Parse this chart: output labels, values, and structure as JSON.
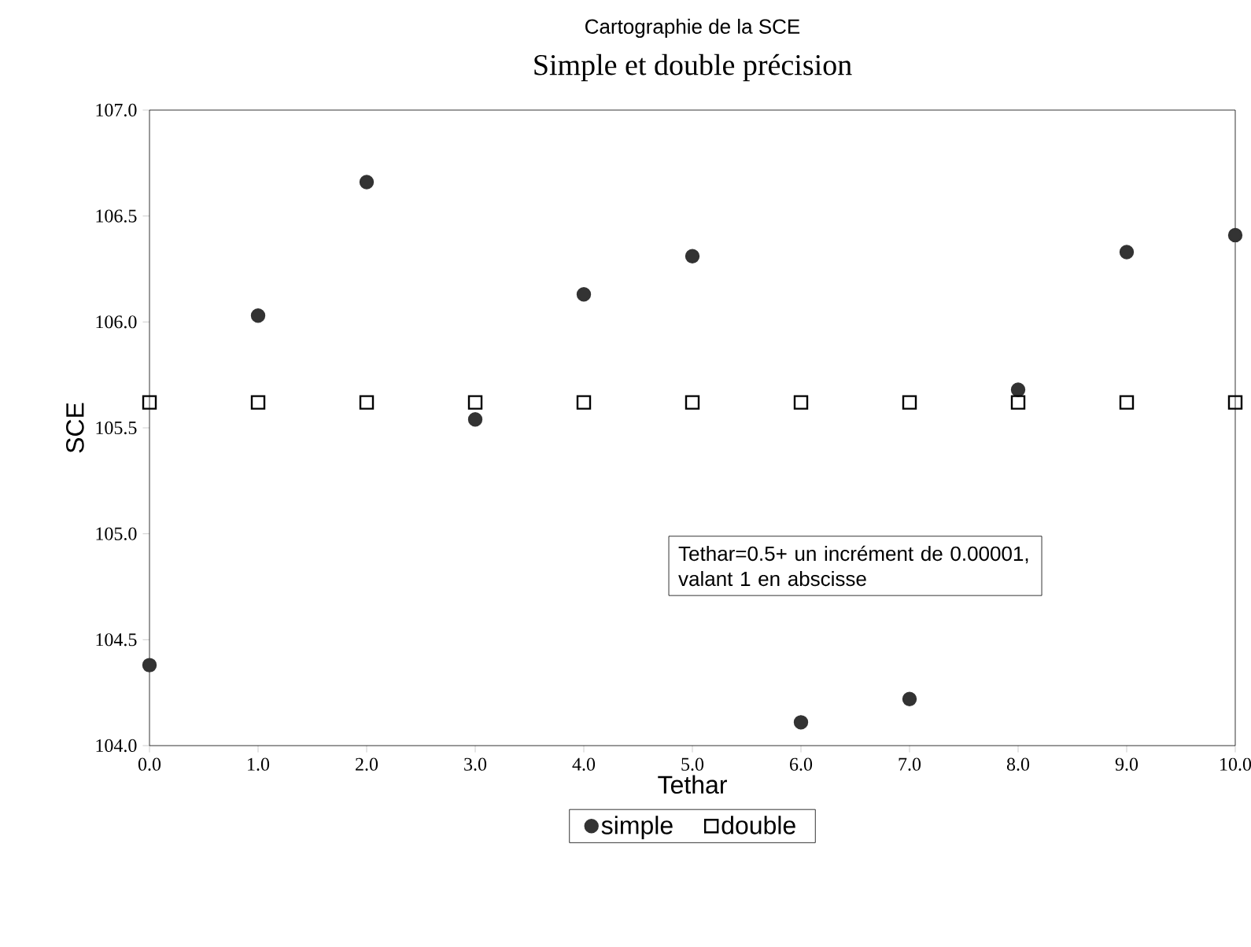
{
  "chart_data": {
    "type": "scatter",
    "title": "Cartographie de la SCE",
    "subtitle": "Simple et double précision",
    "xlabel": "Tethar",
    "ylabel": "SCE",
    "x": [
      0,
      1,
      2,
      3,
      4,
      5,
      6,
      7,
      8,
      9,
      10
    ],
    "series": [
      {
        "name": "simple",
        "color": "#333333",
        "marker": "circle",
        "values": [
          104.38,
          106.03,
          106.66,
          105.54,
          106.13,
          106.31,
          104.11,
          104.22,
          105.68,
          106.33,
          106.41
        ]
      },
      {
        "name": "double",
        "color": "#000000",
        "marker": "square",
        "values": [
          105.62,
          105.62,
          105.62,
          105.62,
          105.62,
          105.62,
          105.62,
          105.62,
          105.62,
          105.62,
          105.62
        ]
      }
    ],
    "xlim": [
      0,
      10
    ],
    "ylim": [
      104,
      107
    ],
    "xticks": [
      {
        "value": 0,
        "label": "0.0"
      },
      {
        "value": 1,
        "label": "1.0"
      },
      {
        "value": 2,
        "label": "2.0"
      },
      {
        "value": 3,
        "label": "3.0"
      },
      {
        "value": 4,
        "label": "4.0"
      },
      {
        "value": 5,
        "label": "5.0"
      },
      {
        "value": 6,
        "label": "6.0"
      },
      {
        "value": 7,
        "label": "7.0"
      },
      {
        "value": 8,
        "label": "8.0"
      },
      {
        "value": 9,
        "label": "9.0"
      },
      {
        "value": 10,
        "label": "10.0"
      }
    ],
    "yticks": [
      {
        "value": 104,
        "label": "104.0"
      },
      {
        "value": 104.5,
        "label": "104.5"
      },
      {
        "value": 105,
        "label": "105.0"
      },
      {
        "value": 105.5,
        "label": "105.5"
      },
      {
        "value": 106,
        "label": "106.0"
      },
      {
        "value": 106.5,
        "label": "106.5"
      },
      {
        "value": 107,
        "label": "107.0"
      }
    ],
    "annotations": [
      "Tethar=0.5+ un incrément de 0.00001, valant 1 en abscisse"
    ],
    "legend": "bottom",
    "grid": false
  }
}
